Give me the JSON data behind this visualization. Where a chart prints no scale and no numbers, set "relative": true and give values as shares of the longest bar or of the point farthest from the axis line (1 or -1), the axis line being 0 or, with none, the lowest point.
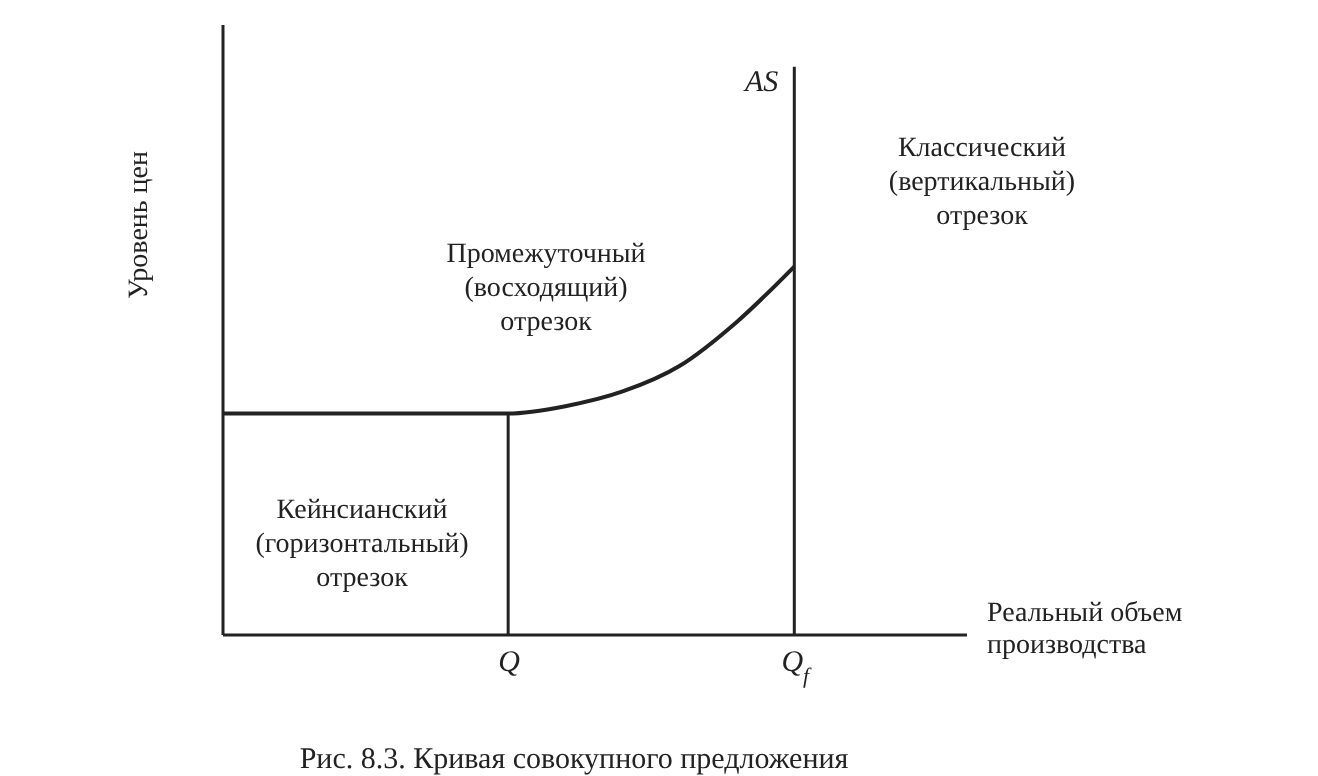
{
  "chart_data": {
    "type": "line",
    "relative": true,
    "title": "Рис. 8.3. Кривая совокупного предложения",
    "xlabel": "Реальный объем производства",
    "ylabel": "Уровень цен",
    "categories": [
      null,
      null,
      null,
      null,
      null,
      "Q",
      null,
      null,
      null,
      null,
      "Q$_{f}$",
      null,
      null
    ],
    "series": [
      {
        "color": "#222222",
        "values": [
          0.6,
          0.6,
          0.6,
          0.6,
          0.6,
          0.6,
          0.62,
          0.66,
          0.73,
          0.85,
          1,
          null,
          null
        ]
      }
    ],
    "ref_lines": [
      {
        "axis": "x",
        "value": "Q"
      },
      {
        "axis": "x",
        "value": "Q$_{f}$",
        "label": "AS"
      }
    ],
    "annotations": [
      "Кейнсианский (горизонтальный) отрезок",
      "Промежуточный (восходящий) отрезок",
      "Классический (вертикальный) отрезок"
    ]
  }
}
